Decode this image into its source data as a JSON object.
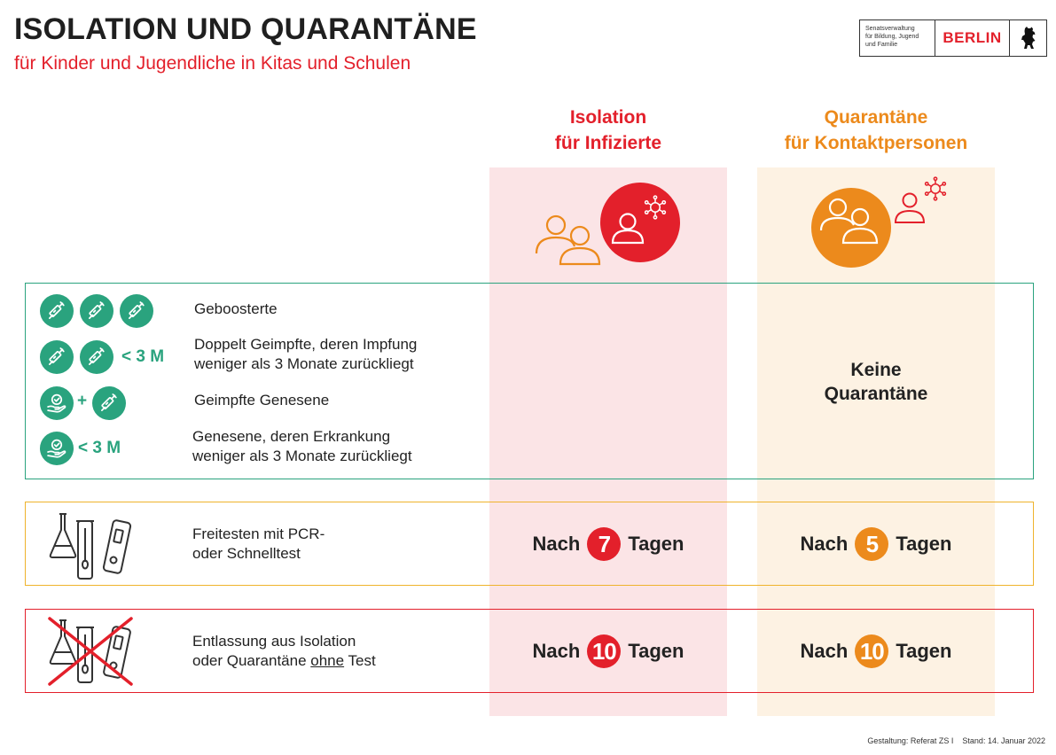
{
  "header": {
    "title": "ISOLATION UND QUARANTÄNE",
    "subtitle": "für Kinder und Jugendliche in Kitas und Schulen"
  },
  "logo": {
    "department": "Senatsverwaltung\nfür Bildung, Jugend\nund Familie",
    "city": "BERLIN"
  },
  "columns": {
    "isolation": {
      "line1": "Isolation",
      "line2": "für Infizierte"
    },
    "quarantine": {
      "line1": "Quarantäne",
      "line2": "für Kontaktpersonen"
    }
  },
  "exempt_groups": {
    "rows": [
      {
        "label": "Geboosterte"
      },
      {
        "label_line1": "Doppelt Geimpfte, deren Impfung",
        "label_line2": "weniger als 3 Monate zurückliegt",
        "marker": "< 3 M"
      },
      {
        "label": "Geimpfte Genesene",
        "plus": "+"
      },
      {
        "label_line1": "Genesene, deren Erkrankung",
        "label_line2": "weniger als 3 Monate zurückliegt",
        "marker": "< 3 M"
      }
    ],
    "quarantine_result_line1": "Keine",
    "quarantine_result_line2": "Quarantäne"
  },
  "test_release": {
    "label_line1": "Freitesten mit PCR-",
    "label_line2": "oder Schnelltest",
    "isolation": {
      "prefix": "Nach",
      "days": "7",
      "suffix": "Tagen"
    },
    "quarantine": {
      "prefix": "Nach",
      "days": "5",
      "suffix": "Tagen"
    }
  },
  "no_test_release": {
    "label_line1": "Entlassung aus Isolation",
    "label_line2_pre": "oder Quarantäne ",
    "label_line2_underlined": "ohne",
    "label_line2_post": " Test",
    "isolation": {
      "prefix": "Nach",
      "days": "10",
      "suffix": "Tagen"
    },
    "quarantine": {
      "prefix": "Nach",
      "days": "10",
      "suffix": "Tagen"
    }
  },
  "footer": {
    "text": "Gestaltung: Referat ZS I    Stand: 14. Januar 2022"
  },
  "colors": {
    "red": "#e3202b",
    "orange": "#ec8a1c",
    "green": "#2aa37e",
    "yellow": "#efb32c"
  }
}
